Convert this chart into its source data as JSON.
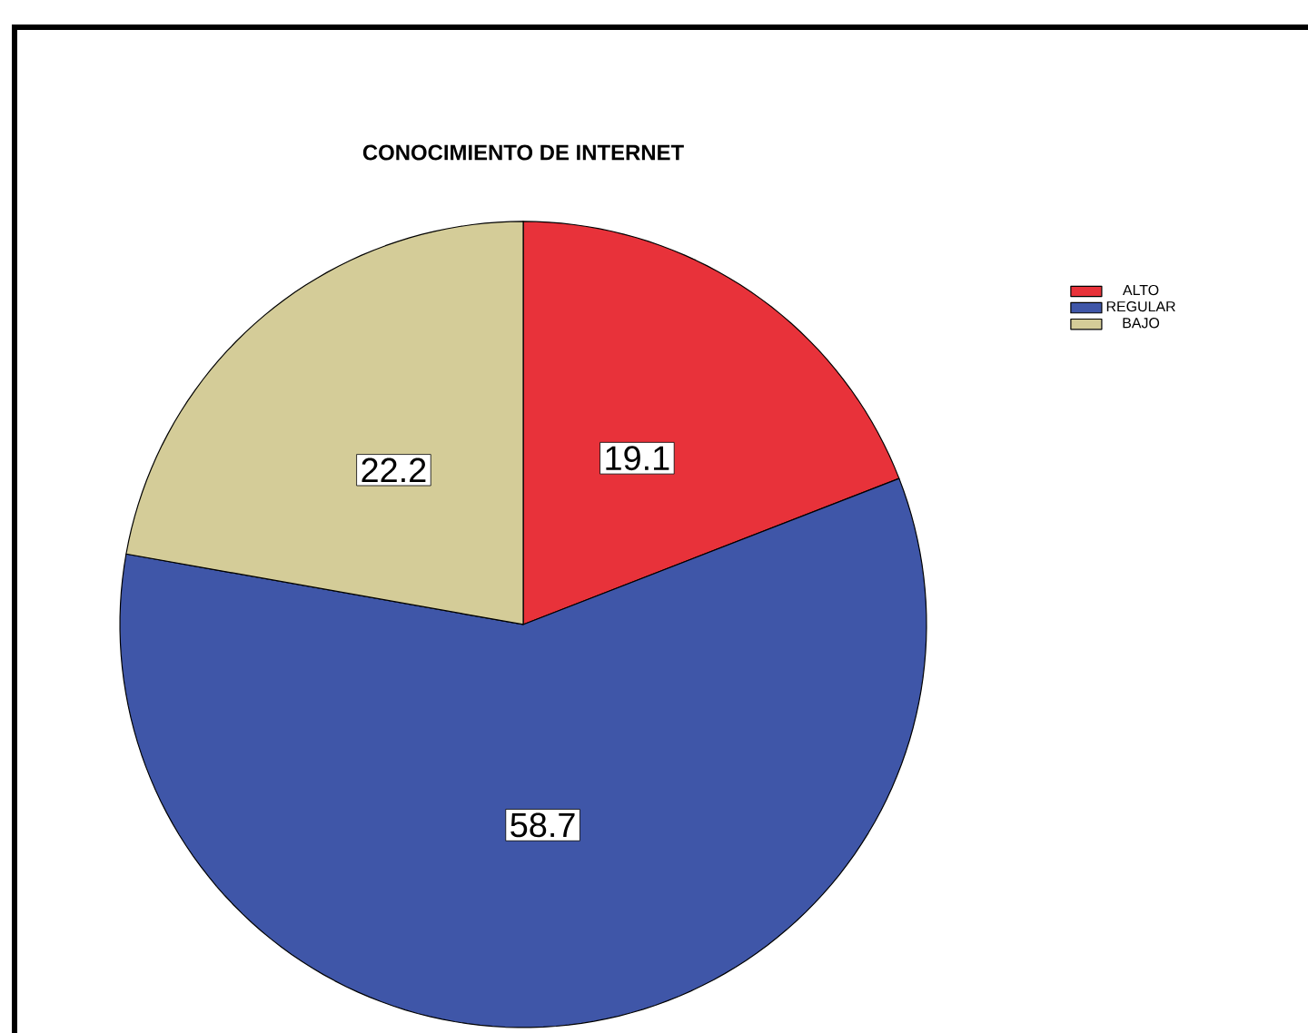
{
  "chart_data": {
    "type": "pie",
    "title": "CONOCIMIENTO DE INTERNET",
    "categories": [
      "ALTO",
      "REGULAR",
      "BAJO"
    ],
    "values": [
      19.1,
      58.7,
      22.2
    ],
    "colors": [
      "#e8323a",
      "#3f56a8",
      "#d4cc98"
    ],
    "data_labels": true,
    "legend": "top right"
  }
}
